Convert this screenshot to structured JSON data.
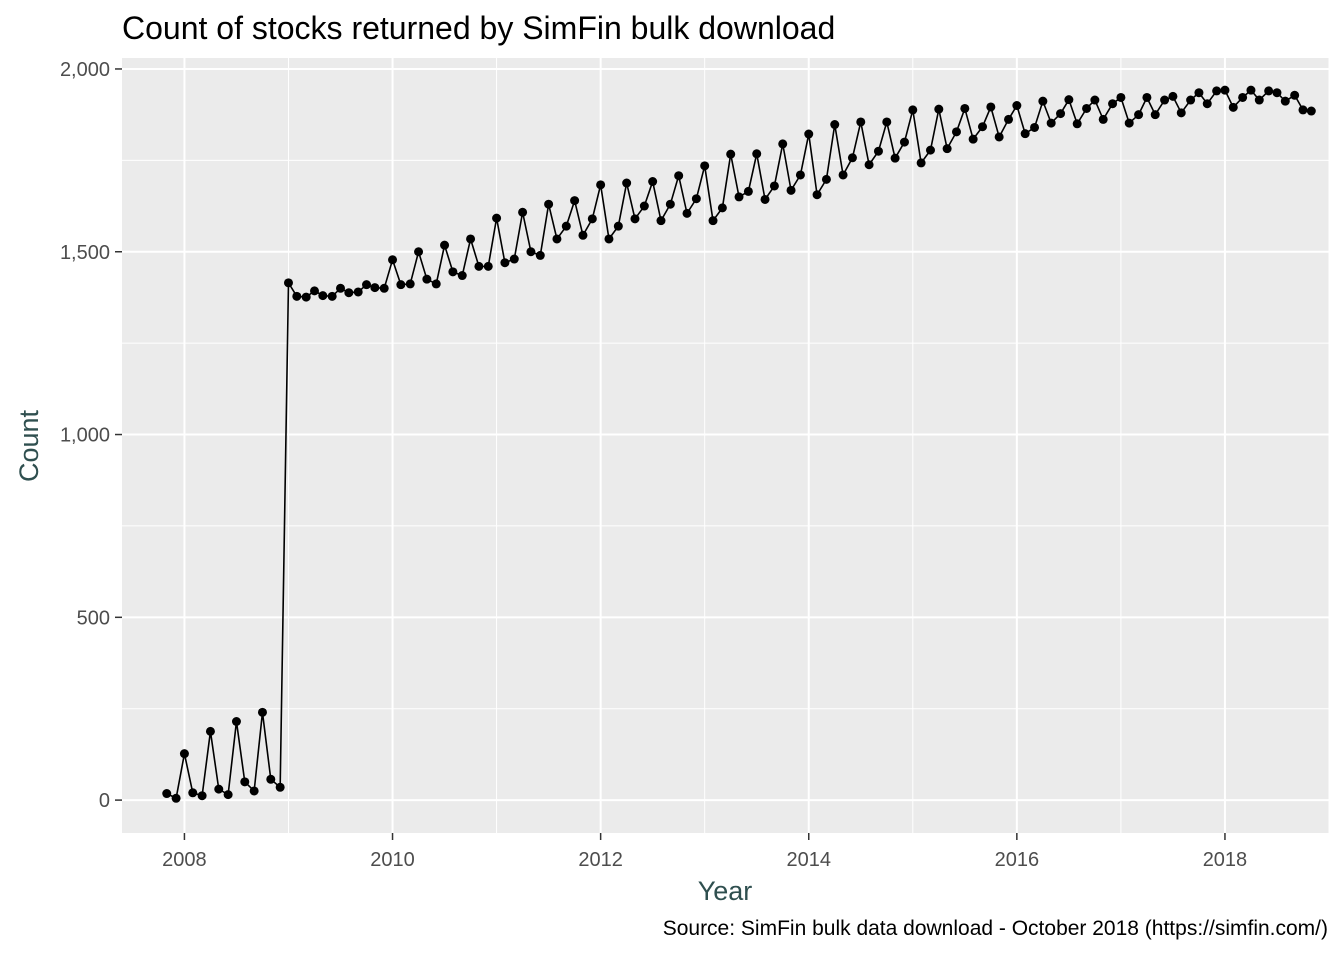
{
  "chart_data": {
    "type": "line",
    "title": "Count of stocks returned by SimFin bulk download",
    "caption": "Source: SimFin bulk data download - October 2018 (https://simfin.com/)",
    "xlabel": "Year",
    "ylabel": "Count",
    "xlim": [
      2007.4,
      2019.0
    ],
    "ylim": [
      -90,
      2030
    ],
    "x_ticks": [
      2008,
      2010,
      2012,
      2014,
      2016,
      2018
    ],
    "x_tick_labels": [
      "2008",
      "2010",
      "2012",
      "2014",
      "2016",
      "2018"
    ],
    "y_ticks": [
      0,
      500,
      1000,
      1500,
      2000
    ],
    "y_tick_labels": [
      "0",
      "500",
      "1,000",
      "1,500",
      "2,000"
    ],
    "grid": true,
    "legend": "none",
    "colors": {
      "panel": "#ebebeb",
      "grid": "#ffffff",
      "line": "#000000",
      "point": "#000000"
    },
    "x": [
      2007.83,
      2007.92,
      2008.0,
      2008.08,
      2008.17,
      2008.25,
      2008.33,
      2008.42,
      2008.5,
      2008.58,
      2008.67,
      2008.75,
      2008.83,
      2008.92,
      2009.0,
      2009.08,
      2009.17,
      2009.25,
      2009.33,
      2009.42,
      2009.5,
      2009.58,
      2009.67,
      2009.75,
      2009.83,
      2009.92,
      2010.0,
      2010.08,
      2010.17,
      2010.25,
      2010.33,
      2010.42,
      2010.5,
      2010.58,
      2010.67,
      2010.75,
      2010.83,
      2010.92,
      2011.0,
      2011.08,
      2011.17,
      2011.25,
      2011.33,
      2011.42,
      2011.5,
      2011.58,
      2011.67,
      2011.75,
      2011.83,
      2011.92,
      2012.0,
      2012.08,
      2012.17,
      2012.25,
      2012.33,
      2012.42,
      2012.5,
      2012.58,
      2012.67,
      2012.75,
      2012.83,
      2012.92,
      2013.0,
      2013.08,
      2013.17,
      2013.25,
      2013.33,
      2013.42,
      2013.5,
      2013.58,
      2013.67,
      2013.75,
      2013.83,
      2013.92,
      2014.0,
      2014.08,
      2014.17,
      2014.25,
      2014.33,
      2014.42,
      2014.5,
      2014.58,
      2014.67,
      2014.75,
      2014.83,
      2014.92,
      2015.0,
      2015.08,
      2015.17,
      2015.25,
      2015.33,
      2015.42,
      2015.5,
      2015.58,
      2015.67,
      2015.75,
      2015.83,
      2015.92,
      2016.0,
      2016.08,
      2016.17,
      2016.25,
      2016.33,
      2016.42,
      2016.5,
      2016.58,
      2016.67,
      2016.75,
      2016.83,
      2016.92,
      2017.0,
      2017.08,
      2017.17,
      2017.25,
      2017.33,
      2017.42,
      2017.5,
      2017.58,
      2017.67,
      2017.75,
      2017.83,
      2017.92,
      2018.0,
      2018.08,
      2018.17,
      2018.25,
      2018.33,
      2018.42,
      2018.5,
      2018.58,
      2018.67,
      2018.75,
      2018.83
    ],
    "y": [
      18,
      5,
      127,
      20,
      12,
      188,
      30,
      15,
      215,
      50,
      25,
      240,
      57,
      35,
      1415,
      1378,
      1376,
      1393,
      1380,
      1378,
      1400,
      1388,
      1390,
      1410,
      1402,
      1400,
      1478,
      1410,
      1412,
      1500,
      1425,
      1412,
      1518,
      1445,
      1435,
      1535,
      1460,
      1460,
      1592,
      1470,
      1480,
      1608,
      1500,
      1490,
      1630,
      1535,
      1570,
      1640,
      1545,
      1590,
      1683,
      1535,
      1570,
      1688,
      1590,
      1625,
      1692,
      1585,
      1630,
      1708,
      1605,
      1645,
      1735,
      1585,
      1620,
      1767,
      1650,
      1665,
      1768,
      1643,
      1680,
      1795,
      1668,
      1710,
      1822,
      1656,
      1698,
      1848,
      1710,
      1757,
      1855,
      1738,
      1775,
      1855,
      1756,
      1800,
      1888,
      1743,
      1778,
      1890,
      1782,
      1828,
      1892,
      1808,
      1842,
      1896,
      1814,
      1862,
      1900,
      1823,
      1840,
      1912,
      1852,
      1878,
      1916,
      1850,
      1892,
      1915,
      1862,
      1905,
      1922,
      1852,
      1875,
      1922,
      1875,
      1915,
      1925,
      1880,
      1915,
      1935,
      1905,
      1940,
      1942,
      1895,
      1922,
      1942,
      1915,
      1940,
      1935,
      1912,
      1928,
      1888,
      1885
    ]
  }
}
